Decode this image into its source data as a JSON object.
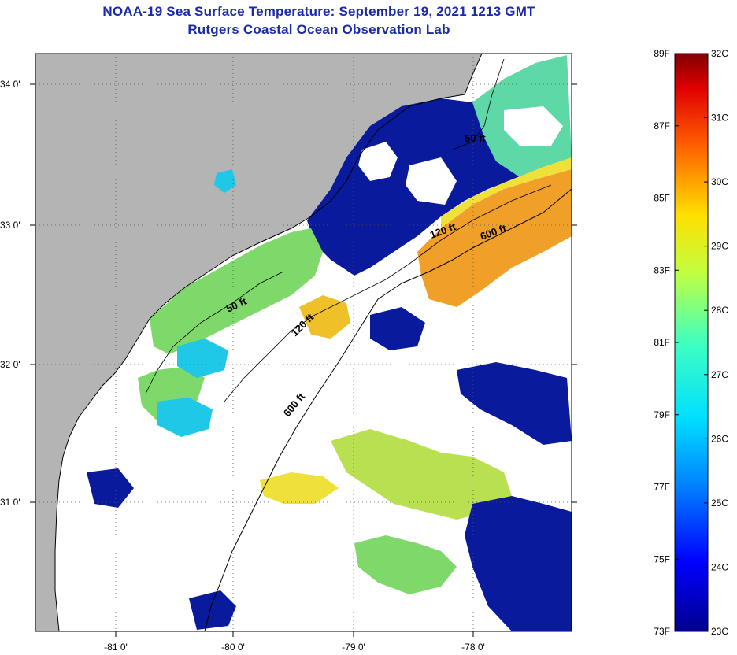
{
  "title": {
    "line1": "NOAA-19 Sea Surface Temperature:  September 19, 2021 1213 GMT",
    "line2": "Rutgers Coastal Ocean Observation Lab"
  },
  "map": {
    "lat_ticks": [
      {
        "label": "34 0'",
        "value": 34
      },
      {
        "label": "33 0'",
        "value": 33
      },
      {
        "label": "32 0'",
        "value": 32
      },
      {
        "label": "31 0'",
        "value": 31
      }
    ],
    "lon_ticks": [
      {
        "label": "-81 0'",
        "value": -81
      },
      {
        "label": "-80 0'",
        "value": -80
      },
      {
        "label": "-79 0'",
        "value": -79
      },
      {
        "label": "-78 0'",
        "value": -78
      }
    ],
    "contour_labels": [
      "50 ft",
      "120 ft",
      "600 ft",
      "50 ft",
      "120 ft",
      "600 ft"
    ],
    "colors": {
      "land": "#b4b4b4",
      "cloud": "#ffffff",
      "deep_blue": "#0a1a9c",
      "cyan": "#1ec8e6",
      "green": "#7fd86a",
      "yellow": "#f0e03a",
      "orange": "#f0a028"
    }
  },
  "colorbar": {
    "fahrenheit": [
      "89F",
      "87F",
      "85F",
      "83F",
      "81F",
      "79F",
      "77F",
      "75F",
      "73F"
    ],
    "celsius": [
      "32C",
      "31C",
      "30C",
      "29C",
      "28C",
      "27C",
      "26C",
      "25C",
      "24C",
      "23C"
    ]
  }
}
